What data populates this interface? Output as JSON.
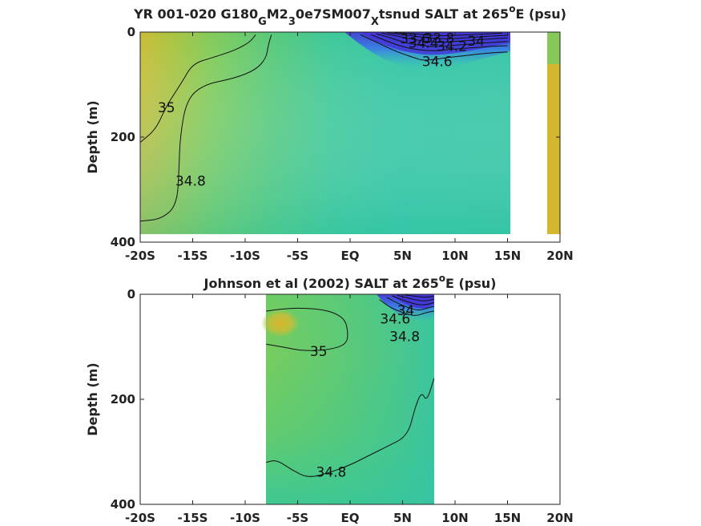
{
  "chart_data": [
    {
      "type": "contourf",
      "title": {
        "main": "YR 001-020 G180",
        "sub1": "G",
        "mid1": "M2",
        "sub2": "3",
        "mid2": "0e7SM007",
        "sub3": "X",
        "mid3": "tsnud SALT at 265",
        "sup": "o",
        "tail": "E (psu)"
      },
      "xlabel": "",
      "ylabel": "Depth (m)",
      "xlim": [
        -20,
        20
      ],
      "ylim": [
        0,
        400
      ],
      "y_reversed": true,
      "x_ticks": [
        {
          "value": -20,
          "label": "-20S"
        },
        {
          "value": -15,
          "label": "-15S"
        },
        {
          "value": -10,
          "label": "-10S"
        },
        {
          "value": -5,
          "label": "-5S"
        },
        {
          "value": 0,
          "label": "EQ"
        },
        {
          "value": 5,
          "label": "5N"
        },
        {
          "value": 10,
          "label": "10N"
        },
        {
          "value": 15,
          "label": "15N"
        },
        {
          "value": 20,
          "label": "20N"
        }
      ],
      "y_ticks": [
        {
          "value": 0,
          "label": "0"
        },
        {
          "value": 200,
          "label": "200"
        },
        {
          "value": 400,
          "label": "400"
        }
      ],
      "data_extent": {
        "lat_min": -20,
        "lat_max": 20,
        "depth_max": 385
      },
      "colormap": "parula",
      "colors": {
        "low": "#4a3fd8",
        "mid": "#33c7a0",
        "high": "#d4b52c"
      },
      "contours": [
        {
          "level": 35,
          "label": "35",
          "points": [
            [
              -20,
              210
            ],
            [
              -18.5,
              185
            ],
            [
              -17.5,
              140
            ],
            [
              -16,
              95
            ],
            [
              -15,
              60
            ],
            [
              -13,
              48
            ],
            [
              -11.5,
              38
            ],
            [
              -10.5,
              30
            ],
            [
              -9.5,
              18
            ],
            [
              -9,
              5
            ]
          ]
        },
        {
          "level": 34.8,
          "label": "34.8",
          "points": [
            [
              -20,
              360
            ],
            [
              -18,
              356
            ],
            [
              -16.5,
              330
            ],
            [
              -16.3,
              260
            ],
            [
              -16.2,
              200
            ],
            [
              -15.6,
              130
            ],
            [
              -14,
              100
            ],
            [
              -11,
              88
            ],
            [
              -9,
              72
            ],
            [
              -8,
              50
            ],
            [
              -7.8,
              25
            ],
            [
              -7.5,
              5
            ]
          ]
        },
        {
          "level": 34.6,
          "label": "34.6",
          "points": [
            [
              1,
              5
            ],
            [
              3,
              24
            ],
            [
              4.5,
              38
            ],
            [
              6,
              48
            ],
            [
              7,
              55
            ],
            [
              9,
              49
            ],
            [
              11,
              45
            ],
            [
              13,
              40
            ],
            [
              15,
              38
            ]
          ]
        },
        {
          "level": 34.4,
          "label": "34.4",
          "points": [
            [
              2,
              5
            ],
            [
              3.6,
              18
            ],
            [
              5,
              28
            ],
            [
              6.5,
              34
            ],
            [
              8,
              36
            ],
            [
              9.5,
              33
            ],
            [
              11.5,
              30
            ],
            [
              13.5,
              27
            ],
            [
              15,
              26
            ]
          ]
        },
        {
          "level": 34.2,
          "label": "34.2",
          "points": [
            [
              2.5,
              3
            ],
            [
              4,
              12
            ],
            [
              5.2,
              20
            ],
            [
              6.8,
              26
            ],
            [
              8.3,
              28
            ],
            [
              10,
              25
            ],
            [
              12,
              22
            ],
            [
              14,
              19
            ],
            [
              15,
              18
            ]
          ]
        },
        {
          "level": 34.0,
          "label": "34",
          "points": [
            [
              3,
              2
            ],
            [
              4.6,
              8
            ],
            [
              6,
              14
            ],
            [
              7.3,
              18
            ],
            [
              8.8,
              20
            ],
            [
              10.5,
              17
            ],
            [
              12.5,
              14
            ],
            [
              15,
              11
            ]
          ]
        },
        {
          "level": 33.8,
          "label": "33.8",
          "points": [
            [
              3.5,
              1
            ],
            [
              5.2,
              5
            ],
            [
              6.5,
              9
            ],
            [
              8,
              12
            ],
            [
              9.5,
              13
            ],
            [
              11,
              11
            ],
            [
              13,
              8
            ],
            [
              15,
              6
            ]
          ]
        },
        {
          "level": 33.6,
          "label": "33.6",
          "points": [
            [
              4.2,
              1
            ],
            [
              6,
              3
            ],
            [
              7.5,
              6
            ],
            [
              9,
              7
            ],
            [
              10.5,
              6
            ],
            [
              12.5,
              4
            ],
            [
              14.5,
              2
            ]
          ]
        }
      ],
      "inline_labels": [
        {
          "text": "35",
          "lat": -17.5,
          "depth": 145
        },
        {
          "text": "34.8",
          "lat": -15.2,
          "depth": 285
        },
        {
          "text": "34.6",
          "lat": 8.3,
          "depth": 57
        },
        {
          "text": "34.2",
          "lat": 9.7,
          "depth": 28
        },
        {
          "text": "34.4",
          "lat": 7.0,
          "depth": 22
        },
        {
          "text": "33.6",
          "lat": 6.2,
          "depth": 14
        },
        {
          "text": "33.8",
          "lat": 8.5,
          "depth": 13
        },
        {
          "text": "34",
          "lat": 12.0,
          "depth": 18
        }
      ]
    },
    {
      "type": "contourf",
      "title": {
        "main": "Johnson et al (2002) SALT at 265",
        "sup": "o",
        "tail": "E (psu)"
      },
      "xlabel": "",
      "ylabel": "Depth (m)",
      "xlim": [
        -20,
        20
      ],
      "ylim": [
        0,
        400
      ],
      "y_reversed": true,
      "x_ticks": [
        {
          "value": -20,
          "label": "-20S"
        },
        {
          "value": -15,
          "label": "-15S"
        },
        {
          "value": -10,
          "label": "-10S"
        },
        {
          "value": -5,
          "label": "-5S"
        },
        {
          "value": 0,
          "label": "EQ"
        },
        {
          "value": 5,
          "label": "5N"
        },
        {
          "value": 10,
          "label": "10N"
        },
        {
          "value": 15,
          "label": "15N"
        },
        {
          "value": 20,
          "label": "20N"
        }
      ],
      "y_ticks": [
        {
          "value": 0,
          "label": "0"
        },
        {
          "value": 200,
          "label": "200"
        },
        {
          "value": 400,
          "label": "400"
        }
      ],
      "data_extent": {
        "lat_min": -8,
        "lat_max": 8,
        "depth_max": 400
      },
      "colormap": "parula",
      "colors": {
        "low": "#4a3fd8",
        "mid": "#33c7a0",
        "high": "#d4b52c"
      },
      "contours": [
        {
          "level": 35,
          "label": "35",
          "points": [
            [
              -8,
              95
            ],
            [
              -6.5,
              100
            ],
            [
              -4.5,
              108
            ],
            [
              -2,
              106
            ],
            [
              -0.3,
              95
            ],
            [
              -0.2,
              70
            ],
            [
              -0.5,
              48
            ],
            [
              -1.5,
              35
            ],
            [
              -3,
              28
            ],
            [
              -5,
              26
            ],
            [
              -6.5,
              28
            ],
            [
              -8,
              32
            ]
          ]
        },
        {
          "level": 34.8,
          "label": "34.8",
          "points": [
            [
              -8,
              320
            ],
            [
              -7,
              315
            ],
            [
              -5.5,
              335
            ],
            [
              -4,
              350
            ],
            [
              -2,
              340
            ],
            [
              0,
              325
            ],
            [
              1.5,
              310
            ],
            [
              3.5,
              290
            ],
            [
              5.5,
              270
            ],
            [
              6.2,
              215
            ],
            [
              6.8,
              185
            ],
            [
              7.3,
              205
            ],
            [
              8,
              160
            ]
          ]
        },
        {
          "level": 34.6,
          "label": "34.6",
          "points": [
            [
              2.8,
              10
            ],
            [
              3.8,
              25
            ],
            [
              5,
              35
            ],
            [
              6.2,
              42
            ],
            [
              7.2,
              35
            ],
            [
              8,
              32
            ]
          ]
        },
        {
          "level": 34.4,
          "label": "",
          "points": [
            [
              3.5,
              6
            ],
            [
              4.5,
              17
            ],
            [
              5.6,
              26
            ],
            [
              6.6,
              31
            ],
            [
              7.4,
              26
            ],
            [
              8,
              23
            ]
          ]
        },
        {
          "level": 34.2,
          "label": "",
          "points": [
            [
              4,
              3
            ],
            [
              5,
              11
            ],
            [
              6,
              18
            ],
            [
              7,
              21
            ],
            [
              8,
              16
            ]
          ]
        },
        {
          "level": 34.0,
          "label": "34",
          "points": [
            [
              4.5,
              2
            ],
            [
              5.5,
              7
            ],
            [
              6.5,
              12
            ],
            [
              7.3,
              13
            ],
            [
              8,
              9
            ]
          ]
        },
        {
          "level": 33.8,
          "label": "",
          "points": [
            [
              5.2,
              1
            ],
            [
              6.2,
              4
            ],
            [
              7.2,
              6
            ],
            [
              8,
              4
            ]
          ]
        }
      ],
      "inline_labels": [
        {
          "text": "35",
          "lat": -3.0,
          "depth": 110
        },
        {
          "text": "34.8",
          "lat": -1.8,
          "depth": 340
        },
        {
          "text": "34.6",
          "lat": 4.3,
          "depth": 48
        },
        {
          "text": "34.8",
          "lat": 5.2,
          "depth": 82
        },
        {
          "text": "34",
          "lat": 5.3,
          "depth": 32
        }
      ]
    }
  ]
}
